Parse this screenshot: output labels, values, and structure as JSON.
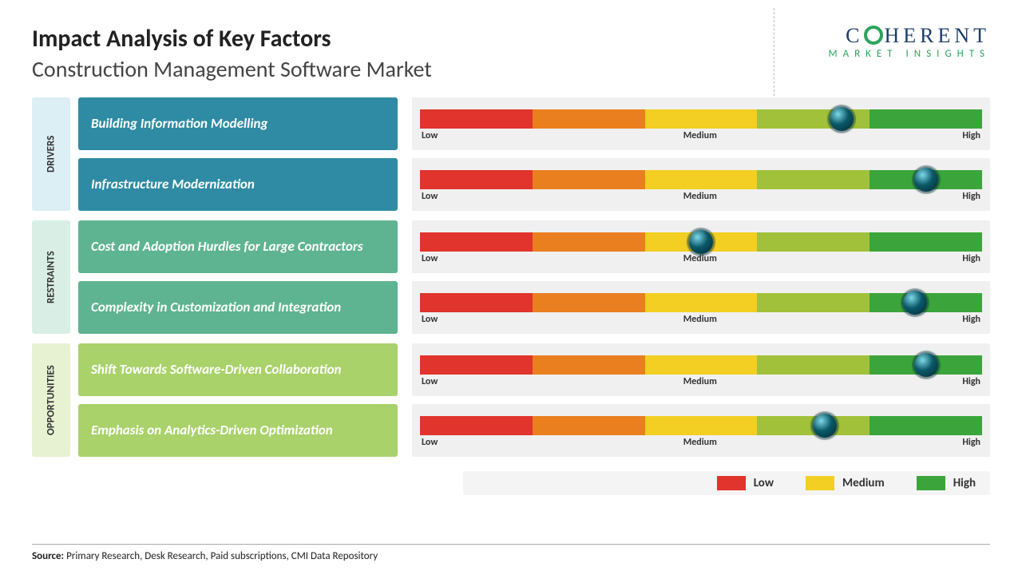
{
  "title": "Impact Analysis of Key Factors",
  "subtitle": "Construction Management Software Market",
  "logo": {
    "line1": "COHERENT",
    "line2": "MARKET  INSIGHTS"
  },
  "axis": {
    "low": "Low",
    "medium": "Medium",
    "high": "High"
  },
  "gradient_segments": [
    {
      "color": "#e0342c",
      "width_pct": 20
    },
    {
      "color": "#ea7f1f",
      "width_pct": 20
    },
    {
      "color": "#f2cf22",
      "width_pct": 20
    },
    {
      "color": "#a2c13a",
      "width_pct": 20
    },
    {
      "color": "#3ba53b",
      "width_pct": 20
    }
  ],
  "groups": [
    {
      "name": "DRIVERS",
      "tab_bg": "#dbeff4",
      "box_bg": "#2e8ba3",
      "factors": [
        {
          "label": "Building Information Modelling",
          "marker_pct": 75
        },
        {
          "label": "Infrastructure Modernization",
          "marker_pct": 90
        }
      ]
    },
    {
      "name": "RESTRAINTS",
      "tab_bg": "#d9efe6",
      "box_bg": "#5eb490",
      "factors": [
        {
          "label": "Cost and Adoption Hurdles for Large Contractors",
          "marker_pct": 50
        },
        {
          "label": "Complexity in Customization and Integration",
          "marker_pct": 88
        }
      ]
    },
    {
      "name": "OPPORTUNITIES",
      "tab_bg": "#e7f2d2",
      "box_bg": "#a9d26a",
      "factors": [
        {
          "label": "Shift Towards Software-Driven Collaboration",
          "marker_pct": 90
        },
        {
          "label": "Emphasis on Analytics-Driven Optimization",
          "marker_pct": 72
        }
      ]
    }
  ],
  "legend": [
    {
      "label": "Low",
      "color": "#e0342c"
    },
    {
      "label": "Medium",
      "color": "#f2cf22"
    },
    {
      "label": "High",
      "color": "#3ba53b"
    }
  ],
  "source_label": "Source:",
  "source_text": "Primary Research, Desk Research, Paid subscriptions, CMI Data Repository",
  "marker_color": "#0d5a6b",
  "body_bg": "#ffffff",
  "row_bg": "#f0f0f0",
  "title_fontsize": 30,
  "subtitle_fontsize": 28,
  "factor_fontsize": 17
}
